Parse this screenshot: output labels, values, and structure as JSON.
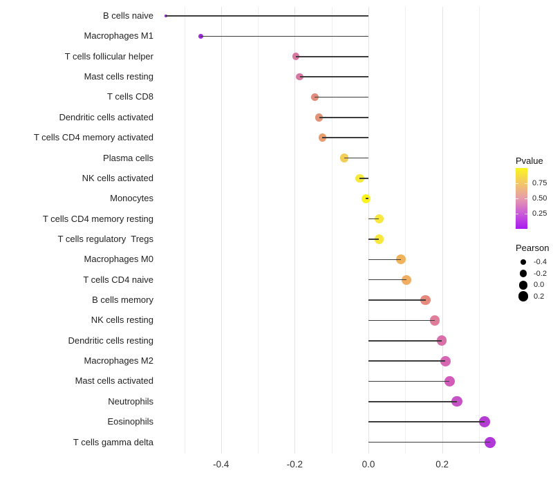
{
  "chart_data": {
    "type": "lollipop",
    "title": "",
    "xlabel": "",
    "ylabel": "",
    "orientation": "horizontal",
    "grid": "vertical, light gray, minor every 0.1",
    "xlim": [
      -0.57,
      0.36
    ],
    "x_ticks": [
      {
        "label": "-0.4",
        "value": -0.4
      },
      {
        "label": "-0.2",
        "value": -0.2
      },
      {
        "label": "0.0",
        "value": 0.0
      },
      {
        "label": "0.2",
        "value": 0.2
      }
    ],
    "categories": [
      "B cells naive",
      "Macrophages M1",
      "T cells follicular helper",
      "Mast cells resting",
      "T cells CD8",
      "Dendritic cells activated",
      "T cells CD4 memory activated",
      "Plasma cells",
      "NK cells activated",
      "Monocytes",
      "T cells CD4 memory resting",
      "T cells regulatory  Tregs",
      "Macrophages M0",
      "T cells CD4 naive",
      "B cells memory",
      "NK cells resting",
      "Dendritic cells resting",
      "Macrophages M2",
      "Mast cells activated",
      "Neutrophils",
      "Eosinophils",
      "T cells gamma delta"
    ],
    "series": [
      {
        "name": "Pearson",
        "values": [
          -0.55,
          -0.455,
          -0.197,
          -0.186,
          -0.146,
          -0.134,
          -0.125,
          -0.065,
          -0.024,
          -0.007,
          0.029,
          0.029,
          0.088,
          0.104,
          0.155,
          0.18,
          0.199,
          0.209,
          0.22,
          0.24,
          0.316,
          0.331
        ]
      },
      {
        "name": "Pvalue (estimated from color)",
        "values": [
          0.02,
          0.05,
          0.42,
          0.42,
          0.52,
          0.56,
          0.62,
          0.78,
          0.88,
          0.97,
          0.87,
          0.87,
          0.68,
          0.66,
          0.49,
          0.44,
          0.38,
          0.33,
          0.28,
          0.22,
          0.09,
          0.08
        ]
      }
    ],
    "point_colors": [
      "#941FE0",
      "#9C2BDC",
      "#D978A0",
      "#D877A1",
      "#E08D7E",
      "#E39377",
      "#EA9E6E",
      "#F2CE57",
      "#F7E93B",
      "#FAF31F",
      "#F8E73D",
      "#F8E73D",
      "#F0B45F",
      "#EFAE62",
      "#E5897F",
      "#DE7E9B",
      "#DA6FA9",
      "#D566B2",
      "#D15BB9",
      "#C553C6",
      "#B43BD4",
      "#B138D8"
    ],
    "stem_color": "#3c3c3c",
    "legend_pvalue": {
      "title": "Pvalue",
      "position": "right",
      "range": [
        0,
        1
      ],
      "ticks": [
        {
          "label": "0.75",
          "value": 0.75
        },
        {
          "label": "0.50",
          "value": 0.5
        },
        {
          "label": "0.25",
          "value": 0.25
        }
      ],
      "gradient_bottom_to_top": [
        "#A81AF0",
        "#C95BD8",
        "#E69CAB",
        "#F3C767",
        "#FAF51E"
      ]
    },
    "legend_pearson": {
      "title": "Pearson",
      "position": "right",
      "items": [
        {
          "label": "-0.4",
          "value": -0.4
        },
        {
          "label": "-0.2",
          "value": -0.2
        },
        {
          "label": "0.0",
          "value": 0.0
        },
        {
          "label": "0.2",
          "value": 0.2
        }
      ],
      "dot_color": "#000000"
    }
  }
}
